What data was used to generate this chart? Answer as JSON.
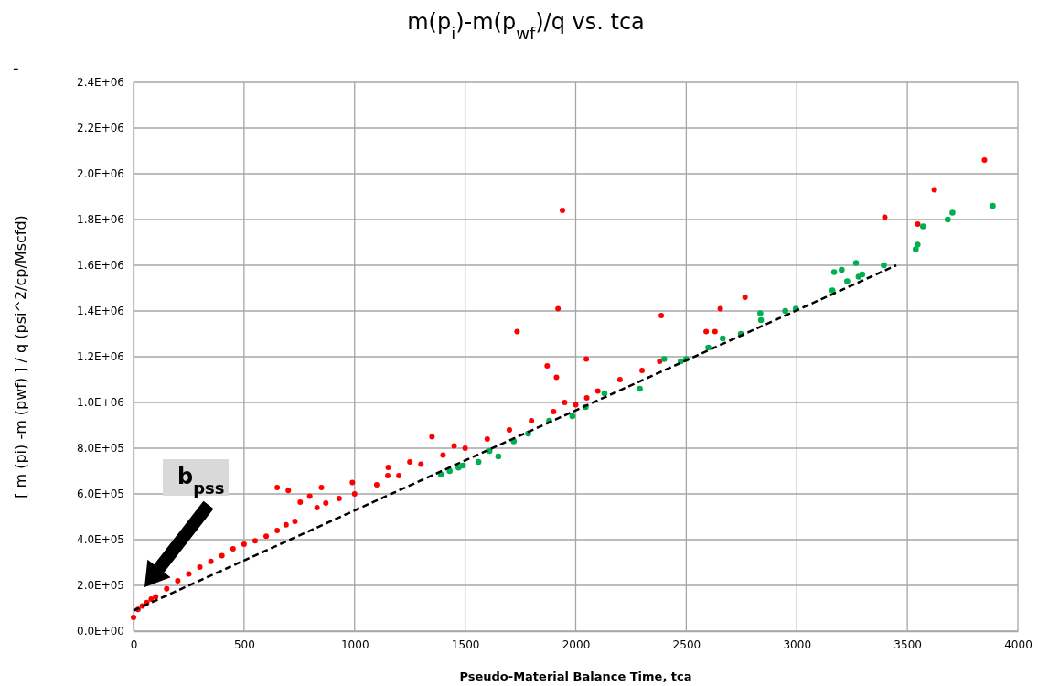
{
  "chart_data": {
    "type": "scatter",
    "title": "m(p$_{i}$)-m(p$_{wf}$)/q vs. tca",
    "xlabel": "Pseudo-Material Balance Time, tca",
    "ylabel": "[ m (pi) -m (pwf) ] /  q  (psi^2/cp/Mscfd)",
    "xlim": [
      0,
      4000
    ],
    "xticks": [
      0,
      500,
      1000,
      1500,
      2000,
      2500,
      3000,
      3500,
      4000
    ],
    "ylim": [
      0,
      2400000
    ],
    "yticks": [
      {
        "value": 0,
        "label": "0.0E+00"
      },
      {
        "value": 200000,
        "label": "2.0E+05"
      },
      {
        "value": 400000,
        "label": "4.0E+05"
      },
      {
        "value": 600000,
        "label": "6.0E+05"
      },
      {
        "value": 800000,
        "label": "8.0E+05"
      },
      {
        "value": 1000000,
        "label": "1.0E+06"
      },
      {
        "value": 1200000,
        "label": "1.2E+06"
      },
      {
        "value": 1400000,
        "label": "1.4E+06"
      },
      {
        "value": 1600000,
        "label": "1.6E+06"
      },
      {
        "value": 1800000,
        "label": "1.8E+06"
      },
      {
        "value": 2000000,
        "label": "2.0E+06"
      },
      {
        "value": 2200000,
        "label": "2.2E+06"
      },
      {
        "value": 2400000,
        "label": "2.4E+06"
      }
    ],
    "grid": true,
    "marker": "circle",
    "series": [
      {
        "type": "scatter",
        "color": "#ff0000",
        "x": [
          0,
          20,
          40,
          60,
          80,
          100,
          150,
          200,
          250,
          300,
          350,
          400,
          450,
          500,
          550,
          600,
          650,
          650,
          690,
          700,
          730,
          754,
          797,
          830,
          850,
          870,
          930,
          990,
          1000,
          1100,
          1150,
          1152,
          1200,
          1250,
          1300,
          1350,
          1400,
          1450,
          1500,
          1600,
          1700,
          1735,
          1800,
          1871,
          1900,
          1913,
          1920,
          1940,
          1950,
          2000,
          2048,
          2050,
          2100,
          2200,
          2300,
          2380,
          2387,
          2590,
          2630,
          2654,
          2766,
          3398,
          3547,
          3622,
          3849
        ],
        "values": [
          60000,
          95000,
          110000,
          125000,
          140000,
          150000,
          185000,
          220000,
          250000,
          280000,
          305000,
          330000,
          360000,
          380000,
          395000,
          415000,
          440000,
          628000,
          465000,
          615000,
          480000,
          564000,
          590000,
          540000,
          628000,
          560000,
          580000,
          650000,
          600000,
          640000,
          680000,
          716000,
          680000,
          740000,
          730000,
          850000,
          770000,
          810000,
          800000,
          840000,
          880000,
          1310000,
          920000,
          1160000,
          960000,
          1110000,
          1410000,
          1840000,
          1000000,
          990000,
          1190000,
          1020000,
          1050000,
          1100000,
          1140000,
          1180000,
          1380000,
          1310000,
          1310000,
          1410000,
          1460000,
          1810000,
          1780000,
          1930000,
          2060000
        ]
      },
      {
        "type": "scatter",
        "color": "#00b050",
        "x": [
          1390,
          1430,
          1470,
          1490,
          1560,
          1610,
          1650,
          1720,
          1785,
          1880,
          1985,
          2045,
          2130,
          2290,
          2400,
          2475,
          2500,
          2600,
          2665,
          2747,
          2835,
          2838,
          2948,
          2996,
          3161,
          3169,
          3203,
          3228,
          3268,
          3280,
          3296,
          3394,
          3538,
          3546,
          3571,
          3683,
          3704,
          3886
        ],
        "values": [
          685000,
          700000,
          715000,
          724000,
          740000,
          788000,
          764000,
          830000,
          864000,
          920000,
          940000,
          980000,
          1040000,
          1060000,
          1190000,
          1180000,
          1190000,
          1240000,
          1280000,
          1300000,
          1390000,
          1360000,
          1400000,
          1410000,
          1490000,
          1570000,
          1580000,
          1530000,
          1610000,
          1550000,
          1560000,
          1600000,
          1670000,
          1690000,
          1770000,
          1800000,
          1830000,
          1860000
        ]
      },
      {
        "type": "line",
        "color": "#000000",
        "line_style": "dashed",
        "marker": "none",
        "x": [
          0,
          3450
        ],
        "values": [
          90000,
          1600000
        ]
      }
    ],
    "annotations": [
      "-",
      "b$_{pss}$"
    ]
  }
}
